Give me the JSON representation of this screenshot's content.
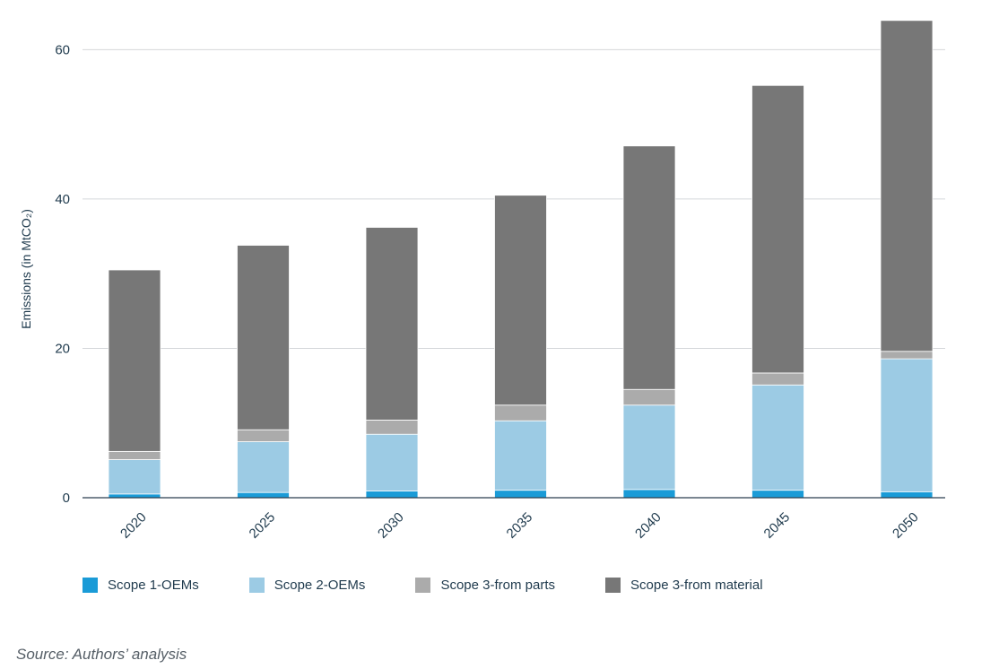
{
  "chart_data": {
    "type": "bar",
    "stacked": true,
    "categories": [
      "2020",
      "2025",
      "2030",
      "2035",
      "2040",
      "2045",
      "2050"
    ],
    "series": [
      {
        "name": "Scope 1-OEMs",
        "color": "#1a9bd7",
        "values": [
          0.5,
          0.7,
          0.9,
          1.0,
          1.1,
          1.0,
          0.8
        ]
      },
      {
        "name": "Scope 2-OEMs",
        "color": "#9ccbe4",
        "values": [
          4.6,
          6.8,
          7.6,
          9.3,
          11.3,
          14.1,
          17.8
        ]
      },
      {
        "name": "Scope 3-from parts",
        "color": "#ababab",
        "values": [
          1.1,
          1.6,
          1.9,
          2.1,
          2.1,
          1.6,
          1.0
        ]
      },
      {
        "name": "Scope 3-from material",
        "color": "#777777",
        "values": [
          24.3,
          24.7,
          25.8,
          28.1,
          32.6,
          38.5,
          44.3
        ]
      }
    ],
    "title": "",
    "xlabel": "",
    "ylabel": "Emissions (in MtCO₂)",
    "ylim": [
      0,
      64
    ],
    "yticks": [
      0,
      20,
      40,
      60
    ],
    "grid": true,
    "legend": "bottom"
  },
  "source": "Source: Authors’ analysis"
}
